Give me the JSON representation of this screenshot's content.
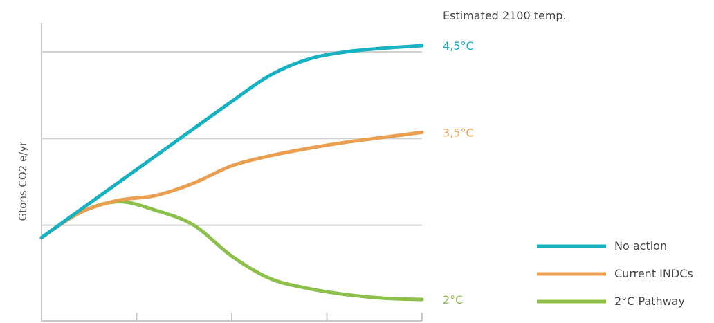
{
  "chart_data": {
    "type": "line",
    "title": "",
    "xlabel": "",
    "ylabel": "Gtons CO2 e/yr",
    "end_labels_heading": "Estimated 2100 temp.",
    "x": [
      0,
      0.1,
      0.2,
      0.3,
      0.4,
      0.5,
      0.6,
      0.7,
      0.8,
      0.9,
      1.0
    ],
    "xlim": [
      0,
      1
    ],
    "ylim": [
      0,
      1
    ],
    "x_ticks": [
      0.25,
      0.5,
      0.75,
      1.0
    ],
    "y_gridlines": [
      0.3,
      0.65,
      1.0
    ],
    "grid": true,
    "legend_position": "bottom-right",
    "series": [
      {
        "name": "No action",
        "color": "#16b2c1",
        "end_label": "4,5°C",
        "values": [
          0.25,
          0.36,
          0.47,
          0.58,
          0.69,
          0.8,
          0.905,
          0.97,
          1.0,
          1.015,
          1.025
        ]
      },
      {
        "name": "Current INDCs",
        "color": "#e99f4f",
        "end_label": "3,5°C",
        "values": [
          0.25,
          0.35,
          0.4,
          0.42,
          0.47,
          0.54,
          0.58,
          0.61,
          0.635,
          0.655,
          0.675
        ]
      },
      {
        "name": "2°C Pathway",
        "color": "#8dc04a",
        "end_label": "2°C",
        "values": [
          0.25,
          0.35,
          0.395,
          0.36,
          0.3,
          0.175,
          0.085,
          0.045,
          0.02,
          0.005,
          0.0
        ]
      }
    ]
  }
}
